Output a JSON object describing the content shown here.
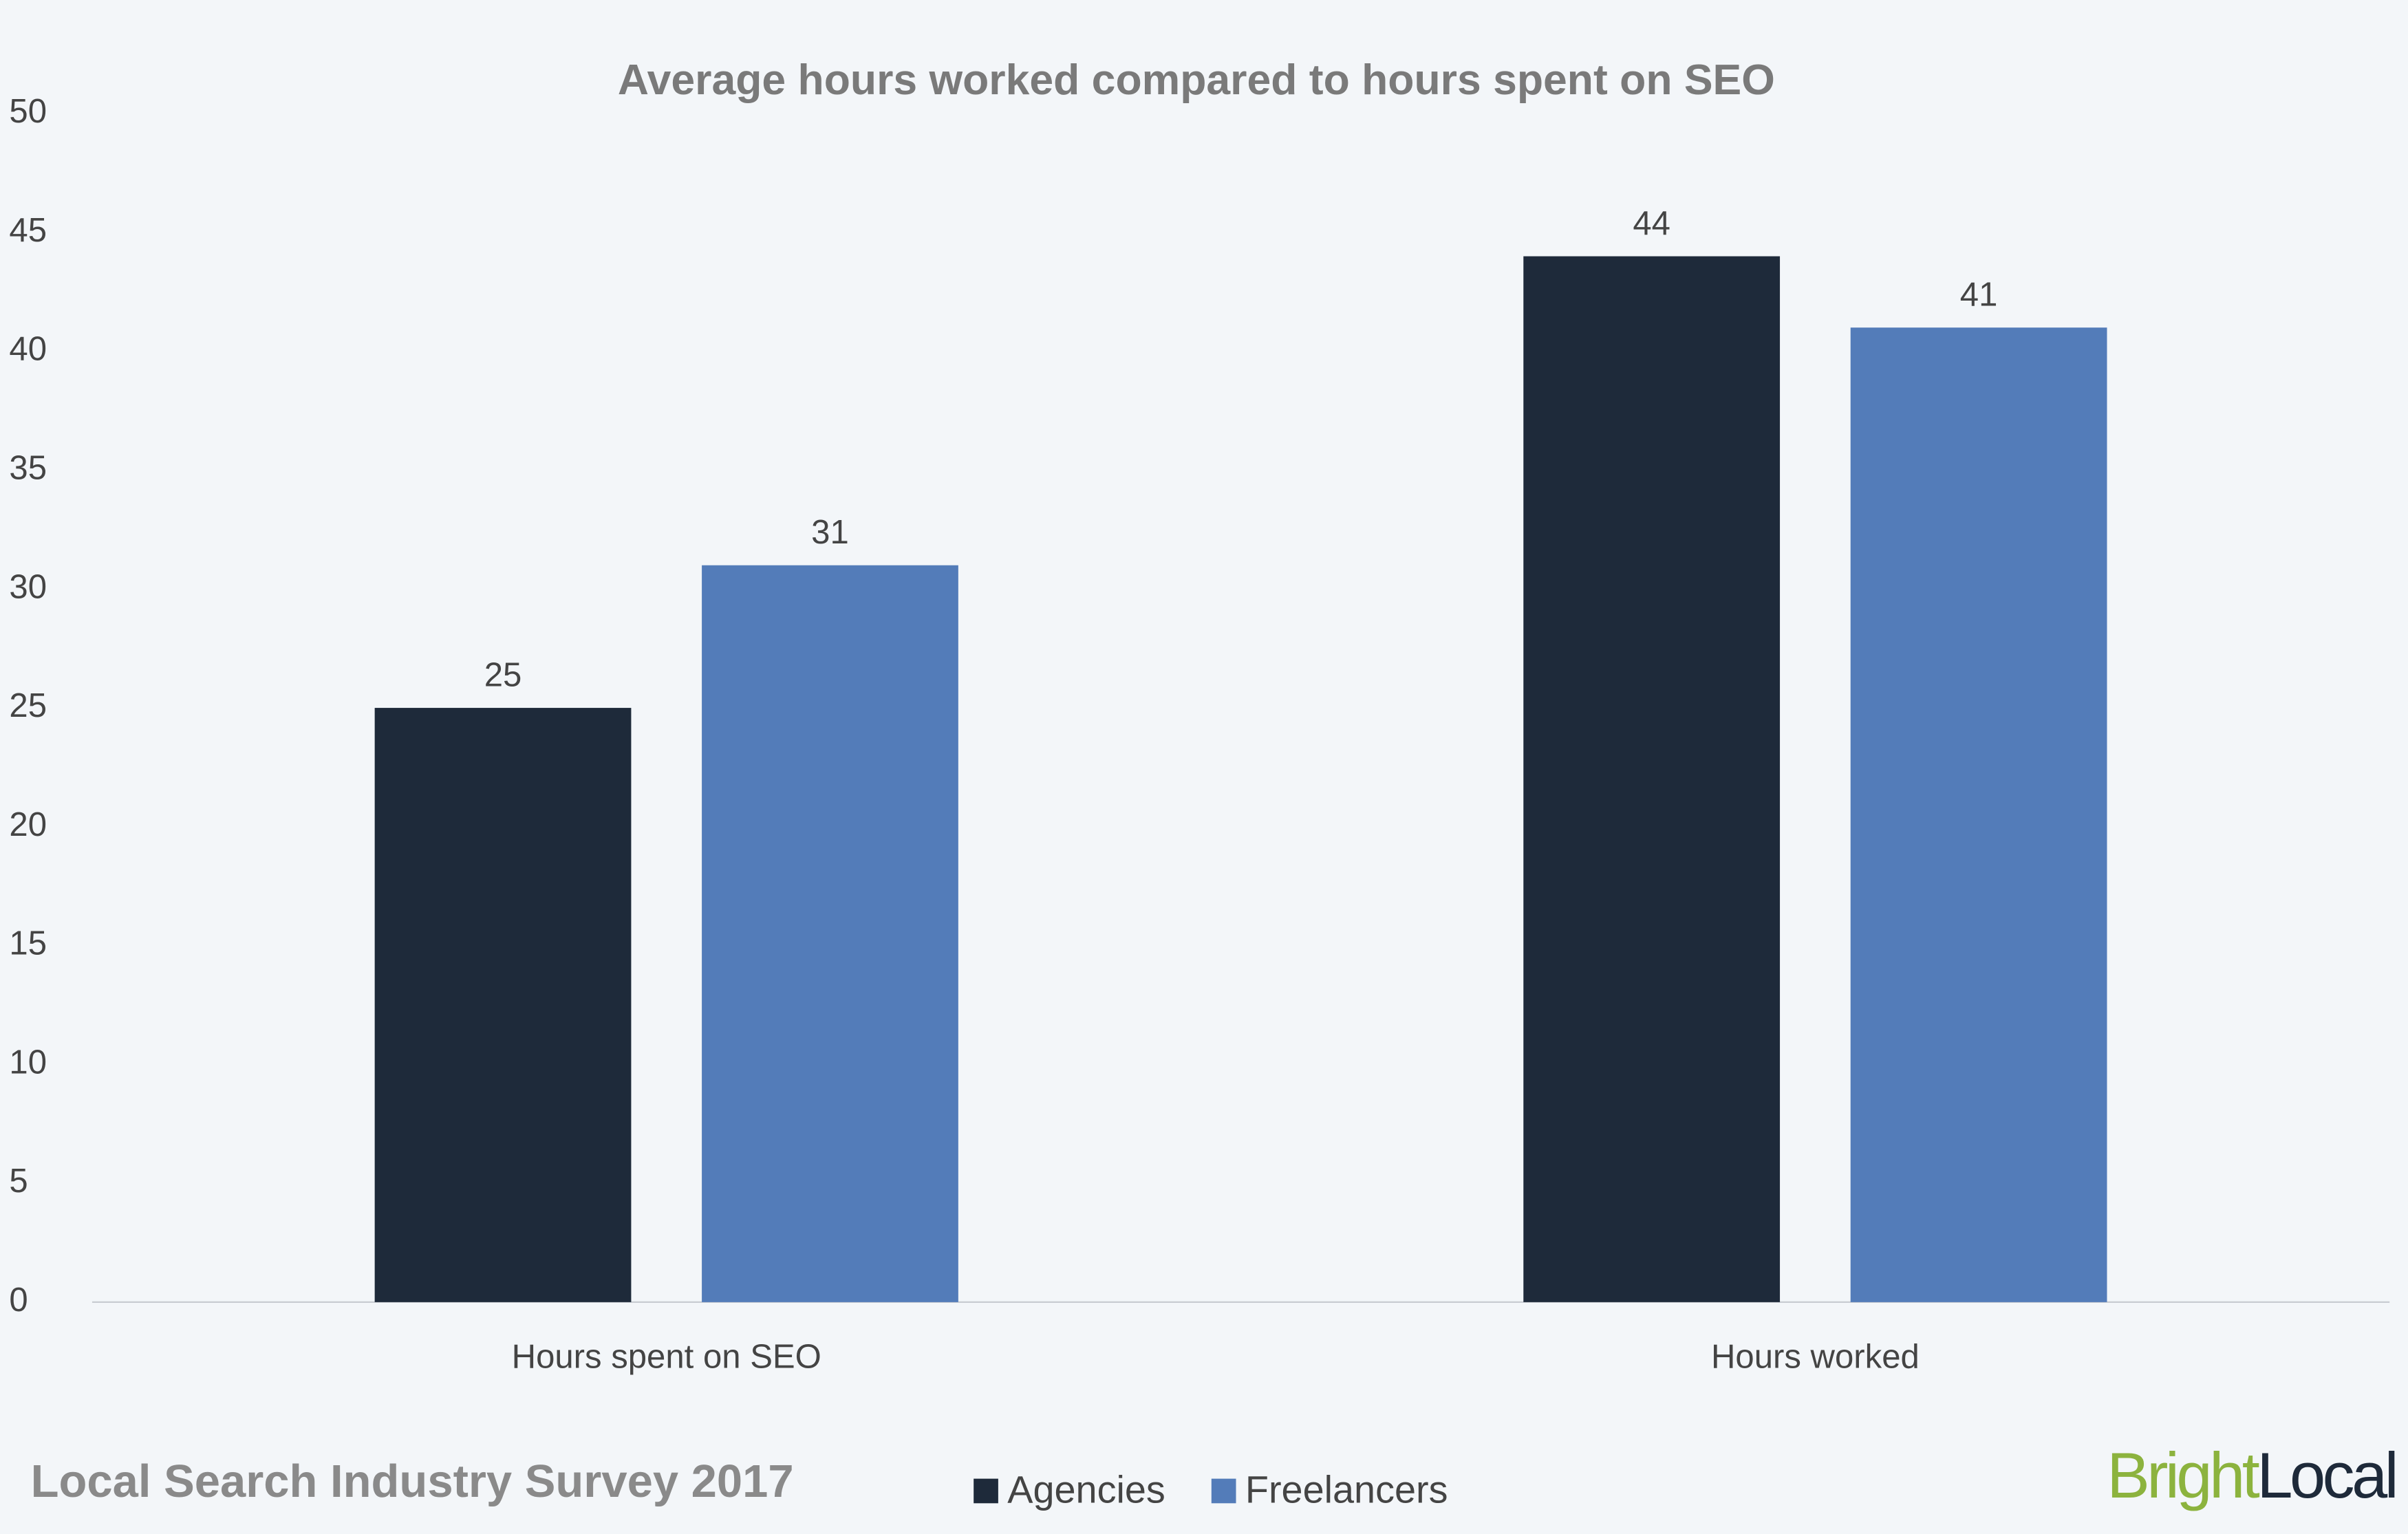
{
  "chart_data": {
    "type": "bar",
    "title": "Average hours worked compared to hours spent on SEO",
    "categories": [
      "Hours spent on SEO",
      "Hours worked"
    ],
    "series": [
      {
        "name": "Agencies",
        "color": "#1e2a3a",
        "values": [
          25,
          44
        ]
      },
      {
        "name": "Freelancers",
        "color": "#537cb9",
        "values": [
          31,
          41
        ]
      }
    ],
    "ylim": [
      0,
      50
    ],
    "yticks": [
      0,
      5,
      10,
      15,
      20,
      25,
      30,
      35,
      40,
      45,
      50
    ],
    "grid": false,
    "legend": "bottom"
  },
  "footer": {
    "source": "Local Search Industry Survey 2017",
    "logo": [
      "Bright",
      "Local"
    ]
  }
}
